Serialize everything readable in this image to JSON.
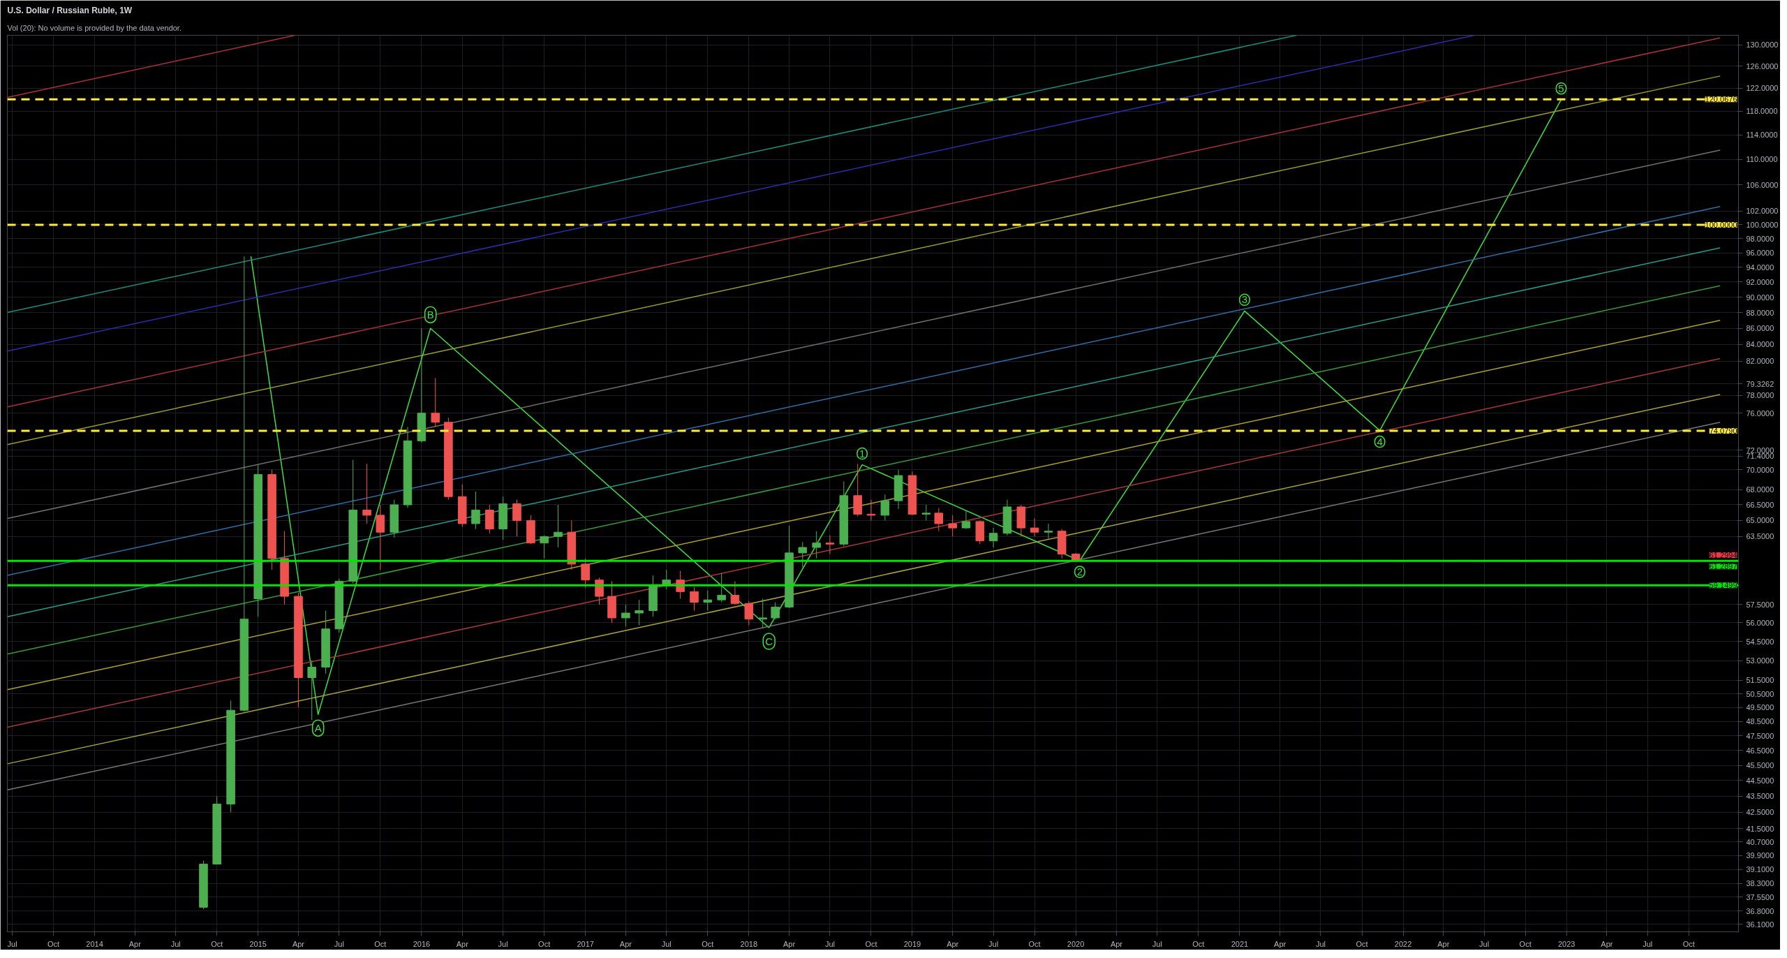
{
  "chart_data": {
    "type": "candlestick",
    "title": "U.S. Dollar / Russian Ruble, 1W",
    "annotations": [
      "Vol (20): No volume is provided by the data vendor.",
      {
        "text": "A",
        "x": "2015-05-15",
        "y": 49
      },
      {
        "text": "B",
        "x": "2016-01-21",
        "y": 86
      },
      {
        "text": "C",
        "x": "2018-02-15",
        "y": 55.6
      },
      {
        "text": "1",
        "x": "2018-09-11",
        "y": 70.5
      },
      {
        "text": "2",
        "x": "2020-01-10",
        "y": 61.3
      },
      {
        "text": "3",
        "x": "2021-01-12",
        "y": 88.2
      },
      {
        "text": "4",
        "x": "2021-11-10",
        "y": 74.1
      },
      {
        "text": "5",
        "x": "2022-12-20",
        "y": 120
      }
    ],
    "x": [
      "2014-09-01",
      "2014-10-01",
      "2014-11-01",
      "2014-12-01",
      "2015-01-01",
      "2015-02-01",
      "2015-03-01",
      "2015-04-01",
      "2015-05-01",
      "2015-06-01",
      "2015-07-01",
      "2015-08-01",
      "2015-09-01",
      "2015-10-01",
      "2015-11-01",
      "2015-12-01",
      "2016-01-01",
      "2016-02-01",
      "2016-03-01",
      "2016-04-01",
      "2016-05-01",
      "2016-06-01",
      "2016-07-01",
      "2016-08-01",
      "2016-09-01",
      "2016-10-01",
      "2016-11-01",
      "2016-12-01",
      "2017-01-01",
      "2017-02-01",
      "2017-03-01",
      "2017-04-01",
      "2017-05-01",
      "2017-06-01",
      "2017-07-01",
      "2017-08-01",
      "2017-09-01",
      "2017-10-01",
      "2017-11-01",
      "2017-12-01",
      "2018-01-01",
      "2018-02-01",
      "2018-03-01",
      "2018-04-01",
      "2018-05-01",
      "2018-06-01",
      "2018-07-01",
      "2018-08-01",
      "2018-09-01",
      "2018-10-01",
      "2018-11-01",
      "2018-12-01",
      "2019-01-01",
      "2019-02-01",
      "2019-03-01",
      "2019-04-01",
      "2019-05-01",
      "2019-06-01",
      "2019-07-01",
      "2019-08-01",
      "2019-09-01",
      "2019-10-01",
      "2019-11-01",
      "2019-12-01",
      "2020-01-01"
    ],
    "ohlc": [
      [
        37.0,
        39.6,
        36.9,
        39.4
      ],
      [
        39.4,
        43.5,
        39.4,
        43.0
      ],
      [
        43.0,
        50.0,
        42.5,
        49.3
      ],
      [
        49.3,
        95.5,
        49.2,
        56.3
      ],
      [
        58.0,
        70.5,
        56.5,
        69.5
      ],
      [
        69.5,
        70.0,
        60.5,
        61.5
      ],
      [
        61.5,
        64.0,
        57.5,
        58.2
      ],
      [
        58.2,
        58.5,
        49.5,
        51.7
      ],
      [
        51.7,
        53.0,
        48.6,
        52.5
      ],
      [
        52.5,
        57.0,
        52.0,
        55.5
      ],
      [
        55.5,
        59.7,
        55.2,
        59.5
      ],
      [
        59.5,
        71.0,
        59.3,
        66.0
      ],
      [
        66.0,
        70.6,
        64.7,
        65.5
      ],
      [
        65.5,
        66.5,
        60.5,
        63.9
      ],
      [
        63.9,
        67.0,
        63.4,
        66.5
      ],
      [
        66.5,
        74.5,
        66.2,
        73.0
      ],
      [
        73.0,
        86.0,
        72.8,
        76.0
      ],
      [
        76.0,
        80.0,
        74.5,
        75.0
      ],
      [
        75.0,
        75.5,
        67.0,
        67.3
      ],
      [
        67.3,
        68.5,
        64.4,
        64.7
      ],
      [
        64.7,
        67.8,
        64.2,
        66.0
      ],
      [
        66.0,
        66.5,
        63.8,
        64.2
      ],
      [
        64.2,
        67.3,
        63.2,
        66.6
      ],
      [
        66.6,
        67.0,
        63.5,
        65.0
      ],
      [
        65.0,
        65.5,
        62.8,
        62.9
      ],
      [
        62.9,
        63.6,
        61.5,
        63.5
      ],
      [
        63.5,
        66.5,
        62.5,
        63.9
      ],
      [
        63.9,
        65.0,
        60.5,
        61.0
      ],
      [
        61.0,
        61.5,
        58.9,
        59.6
      ],
      [
        59.6,
        59.8,
        57.5,
        58.2
      ],
      [
        58.2,
        59.5,
        56.0,
        56.4
      ],
      [
        56.4,
        57.5,
        55.7,
        56.8
      ],
      [
        56.8,
        57.9,
        55.8,
        57.0
      ],
      [
        57.0,
        60.0,
        56.5,
        59.1
      ],
      [
        59.1,
        60.5,
        58.8,
        59.6
      ],
      [
        59.6,
        60.4,
        58.0,
        58.6
      ],
      [
        58.6,
        59.0,
        57.0,
        57.7
      ],
      [
        57.7,
        58.7,
        57.0,
        57.9
      ],
      [
        57.9,
        60.2,
        57.7,
        58.3
      ],
      [
        58.3,
        59.5,
        57.5,
        57.6
      ],
      [
        57.6,
        57.8,
        55.8,
        56.3
      ],
      [
        56.3,
        58.0,
        55.6,
        56.4
      ],
      [
        56.4,
        57.7,
        56.3,
        57.3
      ],
      [
        57.3,
        64.5,
        57.2,
        62.0
      ],
      [
        62.0,
        63.0,
        60.7,
        62.5
      ],
      [
        62.5,
        64.0,
        61.5,
        62.9
      ],
      [
        62.9,
        63.6,
        61.9,
        62.8
      ],
      [
        62.8,
        68.8,
        62.6,
        67.4
      ],
      [
        67.4,
        70.6,
        65.4,
        65.6
      ],
      [
        65.6,
        67.0,
        65.0,
        65.5
      ],
      [
        65.5,
        67.5,
        65.0,
        66.9
      ],
      [
        66.9,
        70.0,
        66.1,
        69.4
      ],
      [
        69.4,
        69.8,
        65.5,
        65.6
      ],
      [
        65.6,
        66.5,
        65.0,
        65.7
      ],
      [
        65.7,
        66.2,
        64.0,
        64.7
      ],
      [
        64.7,
        65.5,
        63.5,
        64.3
      ],
      [
        64.3,
        65.9,
        64.2,
        64.9
      ],
      [
        64.9,
        65.0,
        62.8,
        63.1
      ],
      [
        63.1,
        64.3,
        62.5,
        63.8
      ],
      [
        63.8,
        67.0,
        63.6,
        66.3
      ],
      [
        66.3,
        66.5,
        63.5,
        64.3
      ],
      [
        64.3,
        65.2,
        63.5,
        63.9
      ],
      [
        63.9,
        64.7,
        63.3,
        64.0
      ],
      [
        64.0,
        64.2,
        61.5,
        61.9
      ],
      [
        61.9,
        62.0,
        61.2,
        61.3
      ]
    ],
    "colors": [
      "#4caf50",
      "#4caf50",
      "#4caf50",
      "#4caf50",
      "#4caf50",
      "#ef5350",
      "#ef5350",
      "#ef5350",
      "#4caf50",
      "#4caf50",
      "#4caf50",
      "#4caf50",
      "#ef5350",
      "#ef5350",
      "#4caf50",
      "#4caf50",
      "#4caf50",
      "#ef5350",
      "#ef5350",
      "#ef5350",
      "#4caf50",
      "#ef5350",
      "#4caf50",
      "#ef5350",
      "#ef5350",
      "#4caf50",
      "#4caf50",
      "#ef5350",
      "#ef5350",
      "#ef5350",
      "#ef5350",
      "#4caf50",
      "#4caf50",
      "#4caf50",
      "#4caf50",
      "#ef5350",
      "#ef5350",
      "#4caf50",
      "#4caf50",
      "#ef5350",
      "#ef5350",
      "#4caf50",
      "#4caf50",
      "#4caf50",
      "#4caf50",
      "#4caf50",
      "#ef5350",
      "#4caf50",
      "#ef5350",
      "#ef5350",
      "#4caf50",
      "#4caf50",
      "#ef5350",
      "#4caf50",
      "#ef5350",
      "#ef5350",
      "#4caf50",
      "#ef5350",
      "#4caf50",
      "#4caf50",
      "#ef5350",
      "#ef5350",
      "#4caf50",
      "#ef5350",
      "#ef5350"
    ],
    "series": [
      {
        "type": "line",
        "color": "#3ee03e",
        "x": [
          "2014-12-16",
          "2015-05-15",
          "2016-01-21",
          "2018-02-15"
        ],
        "values": [
          95.5,
          49,
          86,
          55.6
        ]
      },
      {
        "type": "line",
        "color": "#3ee03e",
        "x": [
          "2018-02-15",
          "2018-09-11",
          "2020-01-10",
          "2021-01-12",
          "2021-11-10",
          "2022-12-20"
        ],
        "values": [
          55.6,
          70.5,
          61.3,
          88.2,
          74.1,
          120
        ]
      },
      {
        "type": "line",
        "color": "#a8323a",
        "x": [
          "2013-06-20",
          "2015-03-25"
        ],
        "values": [
          120.4,
          131.8
        ]
      },
      {
        "type": "line",
        "color": "#1f8c7a",
        "x": [
          "2013-06-20",
          "2021-05-08"
        ],
        "values": [
          88.0,
          131.8
        ]
      },
      {
        "type": "line",
        "color": "#2a2fa8",
        "x": [
          "2013-06-20",
          "2022-06-10"
        ],
        "values": [
          83.2,
          131.8
        ]
      },
      {
        "type": "line",
        "color": "#a8323a",
        "x": [
          "2013-06-20",
          "2023-12-10"
        ],
        "values": [
          76.7,
          131.3
        ]
      },
      {
        "type": "line",
        "color": "#9a9a30",
        "x": [
          "2013-06-20",
          "2023-12-10"
        ],
        "values": [
          72.6,
          124.2
        ]
      },
      {
        "type": "line",
        "color": "#707070",
        "x": [
          "2013-06-20",
          "2023-12-10"
        ],
        "values": [
          65.2,
          111.5
        ]
      },
      {
        "type": "line",
        "color": "#2e6fa6",
        "x": [
          "2013-06-20",
          "2023-12-10"
        ],
        "values": [
          60.0,
          102.7
        ]
      },
      {
        "type": "line",
        "color": "#2a9a8a",
        "x": [
          "2013-06-20",
          "2023-12-10"
        ],
        "values": [
          56.5,
          96.7
        ]
      },
      {
        "type": "line",
        "color": "#3a9a3a",
        "x": [
          "2013-06-20",
          "2023-12-10"
        ],
        "values": [
          53.5,
          91.5
        ]
      },
      {
        "type": "line",
        "color": "#b0a030",
        "x": [
          "2013-06-20",
          "2023-12-10"
        ],
        "values": [
          50.8,
          87.0
        ]
      },
      {
        "type": "line",
        "color": "#a83a3a",
        "x": [
          "2013-06-20",
          "2023-12-10"
        ],
        "values": [
          48.1,
          82.3
        ]
      },
      {
        "type": "line",
        "color": "#a8a040",
        "x": [
          "2013-06-20",
          "2023-12-10"
        ],
        "values": [
          45.6,
          78.1
        ]
      },
      {
        "type": "line",
        "color": "#777777",
        "x": [
          "2013-06-20",
          "2023-12-10"
        ],
        "values": [
          43.9,
          75.0
        ]
      }
    ],
    "ref_lines": [
      {
        "axis": "y",
        "value": 120.0676,
        "label": "120.0676",
        "color": "#ffeb3b",
        "line_style": "dashed"
      },
      {
        "axis": "y",
        "value": 100,
        "label": "100.0000",
        "color": "#ffeb3b",
        "line_style": "dashed"
      },
      {
        "axis": "y",
        "value": 74.079,
        "label": "74.0790",
        "color": "#ffeb3b",
        "line_style": "dashed"
      },
      {
        "axis": "y",
        "value": 61.2994,
        "label": "61.2994",
        "color": "#f23645",
        "line_style": "dotted"
      },
      {
        "axis": "y",
        "value": 61.2897,
        "label": "61.2897",
        "color": "#00e600",
        "line_style": "solid"
      },
      {
        "axis": "y",
        "value": 59.1499,
        "label": "59.1499",
        "color": "#00e600",
        "line_style": "solid"
      }
    ],
    "log": true,
    "grid": true,
    "xlim": [
      "2013-06-20",
      "2024-01-20"
    ],
    "xticks": [
      {
        "value": "2013-07-01",
        "label": "Jul"
      },
      {
        "value": "2013-10-01",
        "label": "Oct"
      },
      {
        "value": "2014-01-01",
        "label": "2014"
      },
      {
        "value": "2014-04-01",
        "label": "Apr"
      },
      {
        "value": "2014-07-01",
        "label": "Jul"
      },
      {
        "value": "2014-10-01",
        "label": "Oct"
      },
      {
        "value": "2015-01-01",
        "label": "2015"
      },
      {
        "value": "2015-04-01",
        "label": "Apr"
      },
      {
        "value": "2015-07-01",
        "label": "Jul"
      },
      {
        "value": "2015-10-01",
        "label": "Oct"
      },
      {
        "value": "2016-01-01",
        "label": "2016"
      },
      {
        "value": "2016-04-01",
        "label": "Apr"
      },
      {
        "value": "2016-07-01",
        "label": "Jul"
      },
      {
        "value": "2016-10-01",
        "label": "Oct"
      },
      {
        "value": "2017-01-01",
        "label": "2017"
      },
      {
        "value": "2017-04-01",
        "label": "Apr"
      },
      {
        "value": "2017-07-01",
        "label": "Jul"
      },
      {
        "value": "2017-10-01",
        "label": "Oct"
      },
      {
        "value": "2018-01-01",
        "label": "2018"
      },
      {
        "value": "2018-04-01",
        "label": "Apr"
      },
      {
        "value": "2018-07-01",
        "label": "Jul"
      },
      {
        "value": "2018-10-01",
        "label": "Oct"
      },
      {
        "value": "2019-01-01",
        "label": "2019"
      },
      {
        "value": "2019-04-01",
        "label": "Apr"
      },
      {
        "value": "2019-07-01",
        "label": "Jul"
      },
      {
        "value": "2019-10-01",
        "label": "Oct"
      },
      {
        "value": "2020-01-01",
        "label": "2020"
      },
      {
        "value": "2020-04-01",
        "label": "Apr"
      },
      {
        "value": "2020-07-01",
        "label": "Jul"
      },
      {
        "value": "2020-10-01",
        "label": "Oct"
      },
      {
        "value": "2021-01-01",
        "label": "2021"
      },
      {
        "value": "2021-04-01",
        "label": "Apr"
      },
      {
        "value": "2021-07-01",
        "label": "Jul"
      },
      {
        "value": "2021-10-01",
        "label": "Oct"
      },
      {
        "value": "2022-01-01",
        "label": "2022"
      },
      {
        "value": "2022-04-01",
        "label": "Apr"
      },
      {
        "value": "2022-07-01",
        "label": "Jul"
      },
      {
        "value": "2022-10-01",
        "label": "Oct"
      },
      {
        "value": "2023-01-01",
        "label": "2023"
      },
      {
        "value": "2023-04-01",
        "label": "Apr"
      },
      {
        "value": "2023-07-01",
        "label": "Jul"
      },
      {
        "value": "2023-10-01",
        "label": "Oct"
      }
    ],
    "ylim": [
      35.7,
      131.8
    ],
    "yticks": [
      {
        "value": 130,
        "label": "130.0000"
      },
      {
        "value": 126,
        "label": "126.0000"
      },
      {
        "value": 122,
        "label": "122.0000"
      },
      {
        "value": 118,
        "label": "118.0000"
      },
      {
        "value": 114,
        "label": "114.0000"
      },
      {
        "value": 110,
        "label": "110.0000"
      },
      {
        "value": 106,
        "label": "106.0000"
      },
      {
        "value": 102,
        "label": "102.0000"
      },
      {
        "value": 100,
        "label": "100.0000"
      },
      {
        "value": 98,
        "label": "98.0000"
      },
      {
        "value": 96,
        "label": "96.0000"
      },
      {
        "value": 94,
        "label": "94.0000"
      },
      {
        "value": 92,
        "label": "92.0000"
      },
      {
        "value": 90,
        "label": "90.0000"
      },
      {
        "value": 88,
        "label": "88.0000"
      },
      {
        "value": 86,
        "label": "86.0000"
      },
      {
        "value": 84,
        "label": "84.0000"
      },
      {
        "value": 82,
        "label": "82.0000"
      },
      {
        "value": 79.3262,
        "label": "79.3262"
      },
      {
        "value": 78,
        "label": "78.0000"
      },
      {
        "value": 76,
        "label": "76.0000"
      },
      {
        "value": 72,
        "label": "72.0000"
      },
      {
        "value": 71.4,
        "label": "71.4000"
      },
      {
        "value": 70,
        "label": "70.0000"
      },
      {
        "value": 68,
        "label": "68.0000"
      },
      {
        "value": 66.5,
        "label": "66.5000"
      },
      {
        "value": 65,
        "label": "65.0000"
      },
      {
        "value": 63.5,
        "label": "63.5000"
      },
      {
        "value": 57.5,
        "label": "57.5000"
      },
      {
        "value": 56,
        "label": "56.0000"
      },
      {
        "value": 54.5,
        "label": "54.5000"
      },
      {
        "value": 53,
        "label": "53.0000"
      },
      {
        "value": 51.5,
        "label": "51.5000"
      },
      {
        "value": 50.5,
        "label": "50.5000"
      },
      {
        "value": 49.5,
        "label": "49.5000"
      },
      {
        "value": 48.5,
        "label": "48.5000"
      },
      {
        "value": 47.5,
        "label": "47.5000"
      },
      {
        "value": 46.5,
        "label": "46.5000"
      },
      {
        "value": 45.5,
        "label": "45.5000"
      },
      {
        "value": 44.5,
        "label": "44.5000"
      },
      {
        "value": 43.5,
        "label": "43.5000"
      },
      {
        "value": 42.5,
        "label": "42.5000"
      },
      {
        "value": 41.5,
        "label": "41.5000"
      },
      {
        "value": 40.7,
        "label": "40.7000"
      },
      {
        "value": 39.9,
        "label": "39.9000"
      },
      {
        "value": 39.1,
        "label": "39.1000"
      },
      {
        "value": 38.3,
        "label": "38.3000"
      },
      {
        "value": 37.55,
        "label": "37.5500"
      },
      {
        "value": 36.8,
        "label": "36.8000"
      },
      {
        "value": 36.1,
        "label": "36.1000"
      }
    ]
  }
}
